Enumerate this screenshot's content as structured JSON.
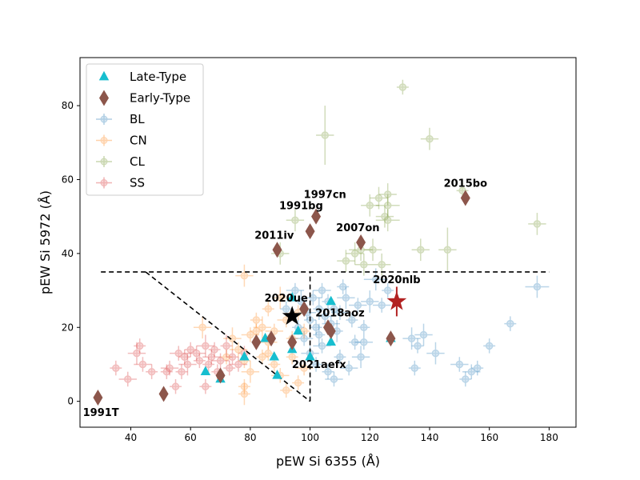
{
  "chart_data": {
    "type": "scatter",
    "xlabel": "pEW Si 6355 (Å)",
    "ylabel": "pEW Si 5972 (Å)",
    "xlim": [
      23,
      189
    ],
    "ylim": [
      -7,
      93
    ],
    "xticks": [
      40,
      60,
      80,
      100,
      120,
      140,
      160,
      180
    ],
    "yticks": [
      0,
      20,
      40,
      60,
      80
    ],
    "grid": false,
    "legend_position": "top-left",
    "legend": {
      "late_type": "Late-Type",
      "early_type": "Early-Type",
      "bl": "BL",
      "cn": "CN",
      "cl": "CL",
      "ss": "SS"
    },
    "colors": {
      "BL": "#1f77b4",
      "CN": "#ff7f0e",
      "CL": "#6b8e23",
      "SS": "#d62728",
      "late_type": "#17becf",
      "early_type": "#8c564b",
      "star_red": "#b22222",
      "star_black": "#000000"
    },
    "boundary_lines": [
      {
        "x": [
          30,
          180
        ],
        "y": [
          35,
          35
        ]
      },
      {
        "x": [
          100,
          100
        ],
        "y": [
          0,
          35
        ]
      },
      {
        "x": [
          45,
          100
        ],
        "y": [
          35,
          0
        ]
      }
    ],
    "series": [
      {
        "name": "BL",
        "points": [
          [
            92,
            25,
            2,
            2
          ],
          [
            95,
            30,
            3,
            2
          ],
          [
            97,
            27,
            2,
            3
          ],
          [
            99,
            24,
            3,
            2
          ],
          [
            100,
            22,
            2,
            2
          ],
          [
            101,
            28,
            3,
            2
          ],
          [
            102,
            20,
            2,
            2
          ],
          [
            103,
            25,
            2,
            3
          ],
          [
            104,
            30,
            3,
            2
          ],
          [
            105,
            23,
            2,
            2
          ],
          [
            106,
            27,
            2,
            2
          ],
          [
            107,
            21,
            3,
            2
          ],
          [
            108,
            25,
            2,
            2
          ],
          [
            109,
            19,
            2,
            3
          ],
          [
            110,
            24,
            3,
            2
          ],
          [
            111,
            31,
            2,
            2
          ],
          [
            112,
            28,
            3,
            3
          ],
          [
            114,
            22,
            2,
            2
          ],
          [
            116,
            26,
            3,
            2
          ],
          [
            118,
            20,
            2,
            2
          ],
          [
            120,
            27,
            3,
            3
          ],
          [
            122,
            33,
            4,
            3
          ],
          [
            124,
            26,
            3,
            2
          ],
          [
            126,
            30,
            2,
            2
          ],
          [
            100,
            13,
            3,
            2
          ],
          [
            102,
            10,
            2,
            2
          ],
          [
            104,
            15,
            3,
            2
          ],
          [
            106,
            8,
            2,
            2
          ],
          [
            108,
            6,
            3,
            2
          ],
          [
            110,
            12,
            2,
            2
          ],
          [
            113,
            9,
            3,
            2
          ],
          [
            115,
            16,
            2,
            2
          ],
          [
            117,
            12,
            3,
            3
          ],
          [
            134,
            17,
            3,
            3
          ],
          [
            136,
            15,
            2,
            2
          ],
          [
            138,
            18,
            3,
            3
          ],
          [
            142,
            13,
            3,
            3
          ],
          [
            135,
            9,
            2,
            2
          ],
          [
            150,
            10,
            3,
            2
          ],
          [
            152,
            6,
            2,
            2
          ],
          [
            154,
            8,
            3,
            2
          ],
          [
            156,
            9,
            2,
            2
          ],
          [
            160,
            15,
            2,
            2
          ],
          [
            167,
            21,
            2,
            2
          ],
          [
            176,
            31,
            4,
            3
          ],
          [
            98,
            17,
            3,
            2
          ],
          [
            96,
            20,
            2,
            2
          ],
          [
            103,
            18,
            2,
            3
          ],
          [
            118,
            16,
            3,
            2
          ]
        ]
      },
      {
        "name": "CN",
        "points": [
          [
            78,
            34,
            3,
            3
          ],
          [
            80,
            18,
            3,
            2
          ],
          [
            82,
            22,
            2,
            2
          ],
          [
            84,
            20,
            3,
            3
          ],
          [
            86,
            25,
            2,
            2
          ],
          [
            88,
            19,
            3,
            2
          ],
          [
            90,
            28,
            2,
            3
          ],
          [
            92,
            22,
            3,
            2
          ],
          [
            94,
            17,
            2,
            2
          ],
          [
            96,
            24,
            3,
            2
          ],
          [
            98,
            19,
            2,
            2
          ],
          [
            76,
            14,
            3,
            2
          ],
          [
            78,
            11,
            2,
            2
          ],
          [
            80,
            8,
            3,
            3
          ],
          [
            84,
            12,
            2,
            2
          ],
          [
            86,
            16,
            3,
            2
          ],
          [
            88,
            10,
            2,
            2
          ],
          [
            90,
            7,
            3,
            2
          ],
          [
            92,
            3,
            2,
            2
          ],
          [
            96,
            5,
            2,
            2
          ],
          [
            98,
            9,
            3,
            2
          ],
          [
            74,
            17,
            3,
            3
          ],
          [
            72,
            12,
            2,
            2
          ],
          [
            78,
            4,
            2,
            2
          ],
          [
            78,
            2,
            2,
            3
          ],
          [
            64,
            20,
            3,
            3
          ],
          [
            82,
            19,
            2,
            2
          ],
          [
            86,
            13,
            2,
            2
          ],
          [
            94,
            12,
            2,
            2
          ]
        ]
      },
      {
        "name": "CL",
        "points": [
          [
            105,
            72,
            3,
            8
          ],
          [
            131,
            85,
            2,
            2
          ],
          [
            140,
            71,
            3,
            3
          ],
          [
            176,
            48,
            3,
            3
          ],
          [
            117,
            41,
            4,
            3
          ],
          [
            121,
            41,
            3,
            3
          ],
          [
            124,
            37,
            3,
            3
          ],
          [
            118,
            37,
            3,
            3
          ],
          [
            112,
            38,
            3,
            3
          ],
          [
            115,
            40,
            3,
            3
          ],
          [
            120,
            53,
            3,
            3
          ],
          [
            123,
            55,
            3,
            3
          ],
          [
            126,
            56,
            3,
            3
          ],
          [
            126,
            53,
            4,
            3
          ],
          [
            125,
            50,
            3,
            3
          ],
          [
            126,
            49,
            4,
            3
          ],
          [
            137,
            41,
            3,
            3
          ],
          [
            146,
            41,
            3,
            6
          ],
          [
            151,
            57,
            2,
            2
          ],
          [
            90,
            40,
            3,
            3
          ],
          [
            95,
            49,
            3,
            3
          ]
        ]
      },
      {
        "name": "SS",
        "points": [
          [
            35,
            9,
            2,
            2
          ],
          [
            39,
            6,
            3,
            2
          ],
          [
            42,
            13,
            3,
            3
          ],
          [
            43,
            15,
            2,
            2
          ],
          [
            44,
            10,
            3,
            2
          ],
          [
            47,
            8,
            2,
            2
          ],
          [
            52,
            8,
            2,
            2
          ],
          [
            53,
            9,
            3,
            2
          ],
          [
            55,
            4,
            2,
            2
          ],
          [
            56,
            13,
            3,
            2
          ],
          [
            57,
            8,
            2,
            2
          ],
          [
            58,
            12,
            2,
            2
          ],
          [
            59,
            10,
            3,
            3
          ],
          [
            60,
            14,
            2,
            2
          ],
          [
            62,
            13,
            3,
            2
          ],
          [
            63,
            11,
            2,
            2
          ],
          [
            65,
            15,
            3,
            3
          ],
          [
            65,
            4,
            2,
            2
          ],
          [
            66,
            10,
            2,
            2
          ],
          [
            67,
            12,
            3,
            2
          ],
          [
            68,
            14,
            2,
            2
          ],
          [
            69,
            8,
            2,
            2
          ],
          [
            70,
            11,
            3,
            2
          ],
          [
            72,
            15,
            2,
            3
          ],
          [
            74,
            12,
            2,
            2
          ],
          [
            76,
            10,
            3,
            2
          ],
          [
            78,
            13,
            2,
            2
          ],
          [
            73,
            9,
            2,
            2
          ]
        ]
      },
      {
        "name": "Late-Type",
        "points": [
          [
            94,
            28
          ],
          [
            107,
            27
          ],
          [
            65,
            8
          ],
          [
            70,
            6
          ],
          [
            78,
            12
          ],
          [
            85,
            17
          ],
          [
            88,
            12
          ],
          [
            89,
            7
          ],
          [
            94,
            14
          ],
          [
            100,
            12
          ],
          [
            107,
            16
          ],
          [
            127,
            17
          ],
          [
            96,
            19
          ]
        ]
      },
      {
        "name": "Early-Type",
        "points": [
          [
            29,
            1
          ],
          [
            51,
            2
          ],
          [
            70,
            7
          ],
          [
            82,
            16
          ],
          [
            87,
            17
          ],
          [
            94,
            16
          ],
          [
            98,
            25
          ],
          [
            100,
            46
          ],
          [
            102,
            50
          ],
          [
            106,
            20
          ],
          [
            107,
            19
          ],
          [
            117,
            43
          ],
          [
            127,
            17
          ],
          [
            152,
            55
          ],
          [
            89,
            41
          ]
        ]
      },
      {
        "name": "2020nlb",
        "points": [
          [
            129,
            27,
            0,
            4
          ]
        ]
      },
      {
        "name": "2020ue",
        "points": [
          [
            94,
            23
          ]
        ]
      }
    ],
    "annotations": [
      {
        "text": "1991T",
        "x": 30,
        "y": -4
      },
      {
        "text": "2011iv",
        "x": 88,
        "y": 44
      },
      {
        "text": "1991bg",
        "x": 97,
        "y": 52
      },
      {
        "text": "1997cn",
        "x": 105,
        "y": 55
      },
      {
        "text": "2007on",
        "x": 116,
        "y": 46
      },
      {
        "text": "2015bo",
        "x": 152,
        "y": 58
      },
      {
        "text": "2020nlb",
        "x": 129,
        "y": 32
      },
      {
        "text": "2020ue",
        "x": 92,
        "y": 27
      },
      {
        "text": "2018aoz",
        "x": 110,
        "y": 23
      },
      {
        "text": "2021aefx",
        "x": 103,
        "y": 9
      }
    ]
  }
}
